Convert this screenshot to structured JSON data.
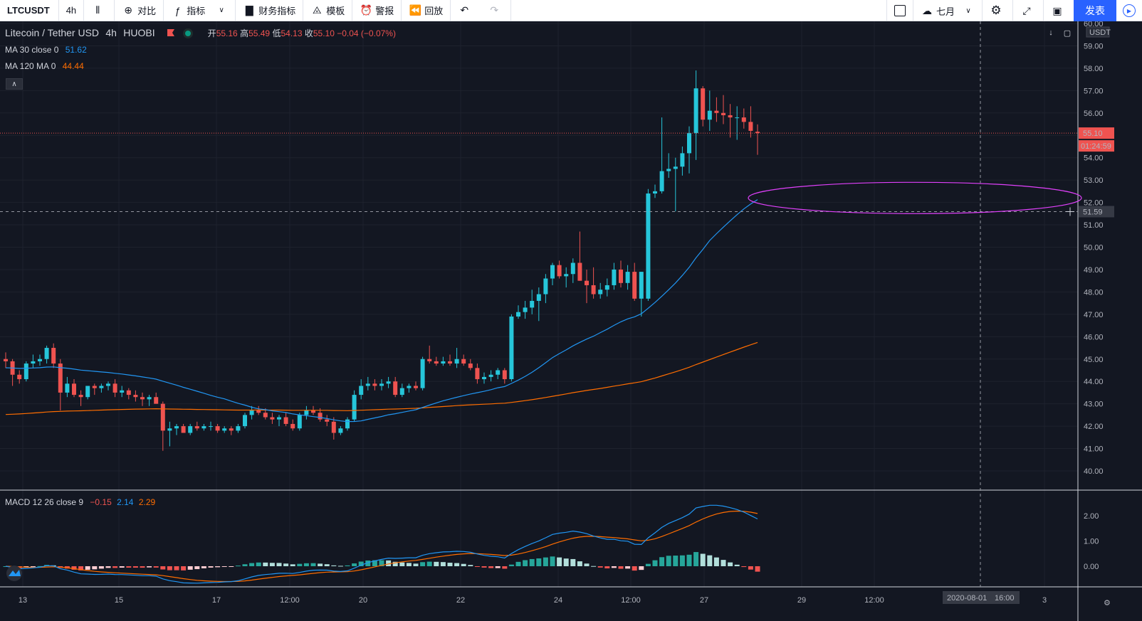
{
  "toolbar": {
    "symbol": "LTCUSDT",
    "interval": "4h",
    "compare": "对比",
    "indicators": "指标",
    "financials": "财务指标",
    "templates": "模板",
    "alerts": "警报",
    "replay": "回放",
    "layout_name": "七月",
    "publish": "发表"
  },
  "legend": {
    "title": "Litecoin / Tether USD",
    "interval": "4h",
    "exchange": "HUOBI",
    "open_label": "开",
    "open": "55.16",
    "high_label": "高",
    "high": "55.49",
    "low_label": "低",
    "low": "54.13",
    "close_label": "收",
    "close": "55.10",
    "change": "−0.04 (−0.07%)",
    "ma30_label": "MA 30 close 0",
    "ma30_value": "51.62",
    "ma120_label": "MA 120 MA 0",
    "ma120_value": "44.44",
    "macd_label": "MACD 12 26 close 9",
    "macd_hist": "−0.15",
    "macd_line": "2.14",
    "macd_signal": "2.29"
  },
  "price_axis": {
    "currency": "USDT",
    "ticks": [
      "60.00",
      "59.00",
      "58.00",
      "57.00",
      "56.00",
      "55.00",
      "54.00",
      "53.00",
      "52.00",
      "51.00",
      "50.00",
      "49.00",
      "48.00",
      "47.00",
      "46.00",
      "45.00",
      "44.00",
      "43.00",
      "42.00",
      "41.00",
      "40.00"
    ],
    "last_price": "55.10",
    "countdown": "01:24:59",
    "crosshair_price": "51.59"
  },
  "macd_axis": {
    "ticks": [
      "2.00",
      "1.00",
      "0.00"
    ]
  },
  "time_axis": {
    "ticks": [
      "13",
      "15",
      "17",
      "12:00",
      "20",
      "22",
      "24",
      "12:00",
      "27",
      "29",
      "12:00",
      "3"
    ],
    "crosshair_date": "2020-08-01",
    "crosshair_time": "16:00"
  },
  "colors": {
    "background": "#131722",
    "up": "#26c6da",
    "down": "#ef5350",
    "ma30": "#2196f3",
    "ma120": "#ff6d00",
    "ellipse": "#e040fb",
    "hist_up": "#26a69a",
    "hist_up_light": "#b2dfdb",
    "hist_down": "#ef5350",
    "hist_down_light": "#ffcdd2"
  },
  "chart_data": {
    "type": "candlestick",
    "symbol": "LTCUSDT",
    "ohlc": [
      [
        45.0,
        45.3,
        44.6,
        44.9
      ],
      [
        44.9,
        45.0,
        43.8,
        44.3
      ],
      [
        44.3,
        44.5,
        43.9,
        44.1
      ],
      [
        44.1,
        44.9,
        44.0,
        44.8
      ],
      [
        44.8,
        45.2,
        44.6,
        44.9
      ],
      [
        44.9,
        45.2,
        44.7,
        45.0
      ],
      [
        45.0,
        45.6,
        44.8,
        45.5
      ],
      [
        45.5,
        45.7,
        44.6,
        44.8
      ],
      [
        44.8,
        45.0,
        42.7,
        43.5
      ],
      [
        43.5,
        44.2,
        43.3,
        43.9
      ],
      [
        43.9,
        44.1,
        43.3,
        43.4
      ],
      [
        43.4,
        43.6,
        42.9,
        43.3
      ],
      [
        43.3,
        43.8,
        43.2,
        43.8
      ],
      [
        43.8,
        43.9,
        43.4,
        43.7
      ],
      [
        43.7,
        43.9,
        43.5,
        43.8
      ],
      [
        43.8,
        44.0,
        43.6,
        43.9
      ],
      [
        43.9,
        44.1,
        43.3,
        43.5
      ],
      [
        43.5,
        43.8,
        43.3,
        43.6
      ],
      [
        43.6,
        43.7,
        43.2,
        43.4
      ],
      [
        43.4,
        43.6,
        43.1,
        43.3
      ],
      [
        43.3,
        43.5,
        42.9,
        43.2
      ],
      [
        43.2,
        43.4,
        42.9,
        43.3
      ],
      [
        43.3,
        43.5,
        43.0,
        43.0
      ],
      [
        43.0,
        43.1,
        40.9,
        41.8
      ],
      [
        41.8,
        42.2,
        41.1,
        41.9
      ],
      [
        41.9,
        42.1,
        41.6,
        42.0
      ],
      [
        42.0,
        42.1,
        41.7,
        41.7
      ],
      [
        41.7,
        42.1,
        41.6,
        42.0
      ],
      [
        42.0,
        42.2,
        41.8,
        41.9
      ],
      [
        41.9,
        42.1,
        41.8,
        42.0
      ],
      [
        42.0,
        42.2,
        41.8,
        42.0
      ],
      [
        42.0,
        42.1,
        41.7,
        41.8
      ],
      [
        41.8,
        42.0,
        41.7,
        41.9
      ],
      [
        41.9,
        42.0,
        41.6,
        41.8
      ],
      [
        41.8,
        42.1,
        41.7,
        42.0
      ],
      [
        42.0,
        42.6,
        41.9,
        42.5
      ],
      [
        42.5,
        42.9,
        42.3,
        42.7
      ],
      [
        42.7,
        42.9,
        42.5,
        42.6
      ],
      [
        42.6,
        42.8,
        42.3,
        42.4
      ],
      [
        42.4,
        42.6,
        42.1,
        42.3
      ],
      [
        42.3,
        42.5,
        42.0,
        42.4
      ],
      [
        42.4,
        42.6,
        42.0,
        42.1
      ],
      [
        42.1,
        42.3,
        41.8,
        41.9
      ],
      [
        41.9,
        42.6,
        41.8,
        42.5
      ],
      [
        42.5,
        42.9,
        42.3,
        42.7
      ],
      [
        42.7,
        42.9,
        42.5,
        42.6
      ],
      [
        42.6,
        42.8,
        42.2,
        42.3
      ],
      [
        42.3,
        42.5,
        42.0,
        42.2
      ],
      [
        42.2,
        42.4,
        41.4,
        41.7
      ],
      [
        41.7,
        42.0,
        41.6,
        41.9
      ],
      [
        41.9,
        42.4,
        41.8,
        42.3
      ],
      [
        42.3,
        43.6,
        42.2,
        43.4
      ],
      [
        43.4,
        44.1,
        43.2,
        43.8
      ],
      [
        43.8,
        44.2,
        43.6,
        43.9
      ],
      [
        43.9,
        44.1,
        43.6,
        43.8
      ],
      [
        43.8,
        44.1,
        43.6,
        43.9
      ],
      [
        43.9,
        44.2,
        43.7,
        44.0
      ],
      [
        44.0,
        44.2,
        43.3,
        43.4
      ],
      [
        43.4,
        43.9,
        43.3,
        43.7
      ],
      [
        43.7,
        43.9,
        43.5,
        43.8
      ],
      [
        43.8,
        44.0,
        43.6,
        43.7
      ],
      [
        43.7,
        45.1,
        43.6,
        45.0
      ],
      [
        45.0,
        45.6,
        44.8,
        44.9
      ],
      [
        44.9,
        45.1,
        44.7,
        44.8
      ],
      [
        44.8,
        45.1,
        44.7,
        44.9
      ],
      [
        44.9,
        45.2,
        44.7,
        44.8
      ],
      [
        44.8,
        45.5,
        44.6,
        45.0
      ],
      [
        45.0,
        45.2,
        44.7,
        44.8
      ],
      [
        44.8,
        45.0,
        44.5,
        44.6
      ],
      [
        44.6,
        44.8,
        43.9,
        44.1
      ],
      [
        44.1,
        44.4,
        43.9,
        44.2
      ],
      [
        44.2,
        44.5,
        44.0,
        44.3
      ],
      [
        44.3,
        44.6,
        44.1,
        44.5
      ],
      [
        44.5,
        44.6,
        43.9,
        44.1
      ],
      [
        44.1,
        47.0,
        44.0,
        46.9
      ],
      [
        46.9,
        47.4,
        46.8,
        47.1
      ],
      [
        47.1,
        47.6,
        46.8,
        47.3
      ],
      [
        47.3,
        48.1,
        47.0,
        47.6
      ],
      [
        47.6,
        48.2,
        46.7,
        47.9
      ],
      [
        47.9,
        48.8,
        47.5,
        48.6
      ],
      [
        48.6,
        49.3,
        48.3,
        49.2
      ],
      [
        49.2,
        49.4,
        48.6,
        48.7
      ],
      [
        48.7,
        49.1,
        48.2,
        48.8
      ],
      [
        48.8,
        49.5,
        48.4,
        49.3
      ],
      [
        49.3,
        50.7,
        48.5,
        48.5
      ],
      [
        48.5,
        49.0,
        47.5,
        48.3
      ],
      [
        48.3,
        49.1,
        47.7,
        47.9
      ],
      [
        47.9,
        48.4,
        47.7,
        48.1
      ],
      [
        48.1,
        48.6,
        47.8,
        48.3
      ],
      [
        48.3,
        49.3,
        48.1,
        49.0
      ],
      [
        49.0,
        49.4,
        48.2,
        48.4
      ],
      [
        48.4,
        49.2,
        48.1,
        48.9
      ],
      [
        48.9,
        49.3,
        47.6,
        47.7
      ],
      [
        47.7,
        48.9,
        46.9,
        48.9
      ],
      [
        47.7,
        52.6,
        47.6,
        52.4
      ],
      [
        52.4,
        52.8,
        52.2,
        52.5
      ],
      [
        52.5,
        55.8,
        52.4,
        53.4
      ],
      [
        53.4,
        54.2,
        53.1,
        53.5
      ],
      [
        53.5,
        54.0,
        51.6,
        53.6
      ],
      [
        53.6,
        54.5,
        53.2,
        54.2
      ],
      [
        54.2,
        55.4,
        53.3,
        55.1
      ],
      [
        55.1,
        57.9,
        53.9,
        57.1
      ],
      [
        57.1,
        57.2,
        55.4,
        55.7
      ],
      [
        55.7,
        57.0,
        55.2,
        56.1
      ],
      [
        56.1,
        56.7,
        55.6,
        56.0
      ],
      [
        56.0,
        56.8,
        55.5,
        55.9
      ],
      [
        55.9,
        56.4,
        54.9,
        55.8
      ],
      [
        55.8,
        56.3,
        54.8,
        55.8
      ],
      [
        55.8,
        56.2,
        55.3,
        55.6
      ],
      [
        55.6,
        56.3,
        54.9,
        55.2
      ],
      [
        55.16,
        55.49,
        54.13,
        55.1
      ]
    ]
  }
}
